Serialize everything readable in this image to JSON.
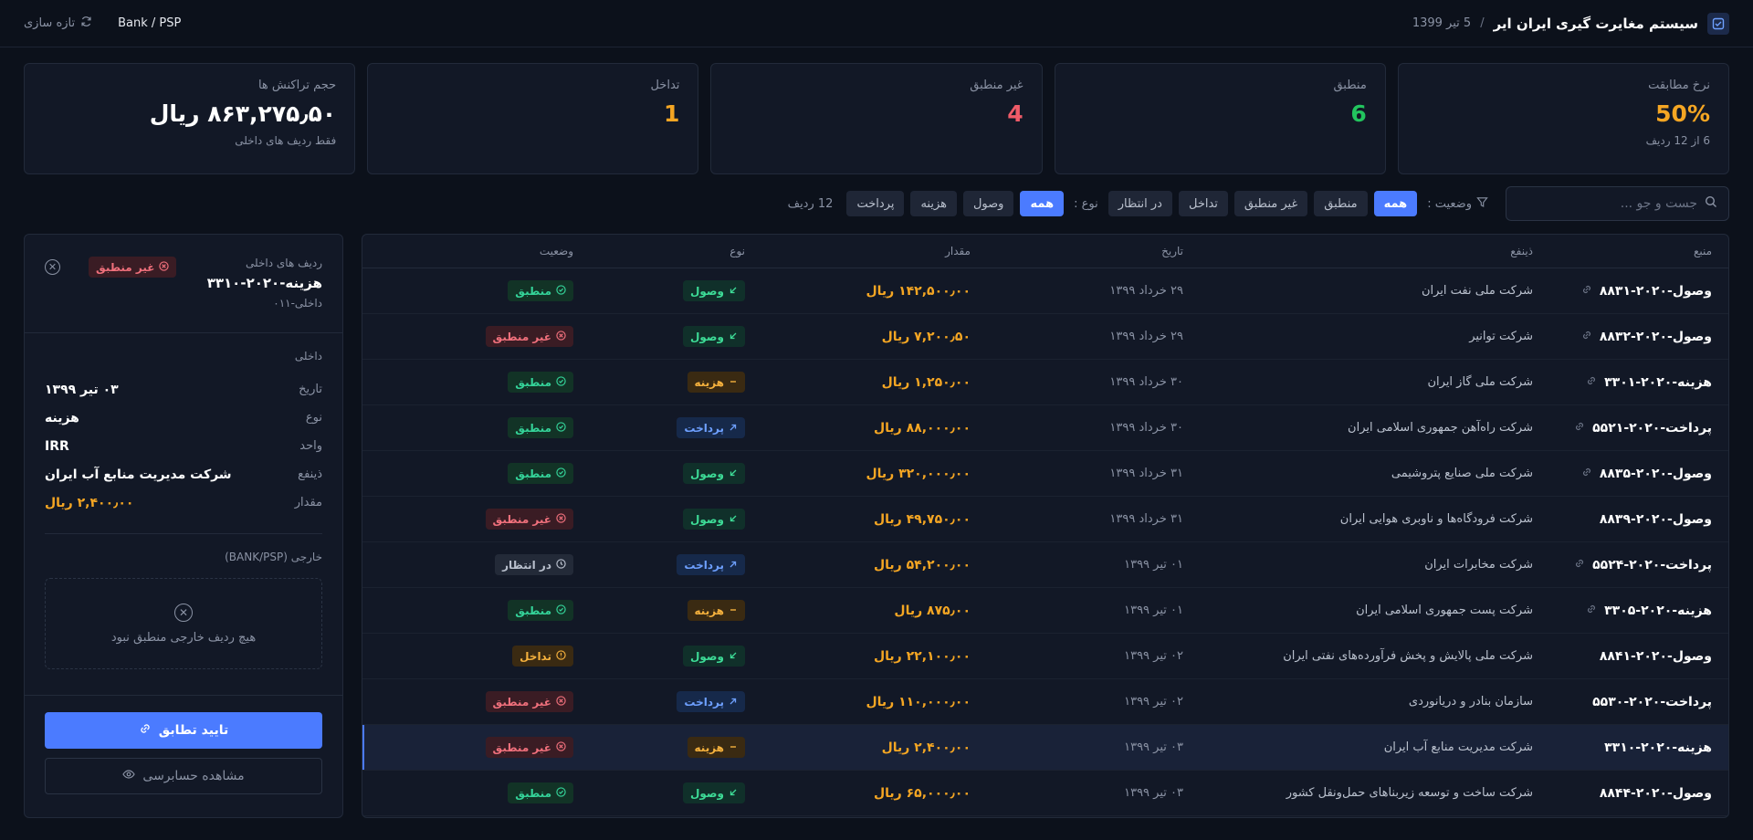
{
  "header": {
    "title": "سیستم مغایرت گیری ایران ایر",
    "separator": "/",
    "date": "5 تیر 1399",
    "mode": "Bank / PSP",
    "refresh_label": "تازه سازی"
  },
  "stats": [
    {
      "label": "نرخ مطابقت",
      "value": "50%",
      "sub": "6 از 12 ردیف",
      "color": "#f5a623"
    },
    {
      "label": "منطبق",
      "value": "6",
      "sub": "",
      "color": "#22c55e"
    },
    {
      "label": "غیر منطبق",
      "value": "4",
      "sub": "",
      "color": "#ef5b68"
    },
    {
      "label": "تداخل",
      "value": "1",
      "sub": "",
      "color": "#f5a623"
    },
    {
      "label": "حجم تراکنش ها",
      "value": "۸۶۳,۲۷۵٫۵۰ ریال",
      "sub": "فقط ردیف های داخلی",
      "color": "#ffffff"
    }
  ],
  "filters": {
    "search_placeholder": "جست و جو ...",
    "status_label": "وضعیت :",
    "status_options": [
      "همه",
      "منطبق",
      "غیر منطبق",
      "تداخل",
      "در انتظار"
    ],
    "type_label": "نوع :",
    "type_options": [
      "همه",
      "وصول",
      "هزینه",
      "پرداخت"
    ],
    "row_count": "12 ردیف"
  },
  "table": {
    "headers": [
      "منبع",
      "ذینفع",
      "تاریخ",
      "مقدار",
      "نوع",
      "وضعیت"
    ],
    "rows": [
      {
        "ref": "وصول-۲۰۲۰-۸۸۳۱",
        "linked": true,
        "payee": "شرکت ملی نفت ایران",
        "date": "۲۹ خرداد ۱۳۹۹",
        "amount": "۱۴۲,۵۰۰٫۰۰ ریال",
        "type": "وصول",
        "type_kind": "in",
        "status": "منطبق",
        "status_kind": "match"
      },
      {
        "ref": "وصول-۲۰۲۰-۸۸۳۲",
        "linked": true,
        "payee": "شرکت توانیر",
        "date": "۲۹ خرداد ۱۳۹۹",
        "amount": "۷,۲۰۰٫۵۰ ریال",
        "type": "وصول",
        "type_kind": "in",
        "status": "غیر منطبق",
        "status_kind": "mismatch"
      },
      {
        "ref": "هزینه-۲۰۲۰-۳۳۰۱",
        "linked": true,
        "payee": "شرکت ملی گاز ایران",
        "date": "۳۰ خرداد ۱۳۹۹",
        "amount": "۱,۲۵۰٫۰۰ ریال",
        "type": "هزینه",
        "type_kind": "exp",
        "status": "منطبق",
        "status_kind": "match"
      },
      {
        "ref": "پرداخت-۲۰۲۰-۵۵۲۱",
        "linked": true,
        "payee": "شرکت راه‌آهن جمهوری اسلامی ایران",
        "date": "۳۰ خرداد ۱۳۹۹",
        "amount": "۸۸,۰۰۰٫۰۰ ریال",
        "type": "پرداخت",
        "type_kind": "pay",
        "status": "منطبق",
        "status_kind": "match"
      },
      {
        "ref": "وصول-۲۰۲۰-۸۸۳۵",
        "linked": true,
        "payee": "شرکت ملی صنایع پتروشیمی",
        "date": "۳۱ خرداد ۱۳۹۹",
        "amount": "۳۲۰,۰۰۰٫۰۰ ریال",
        "type": "وصول",
        "type_kind": "in",
        "status": "منطبق",
        "status_kind": "match"
      },
      {
        "ref": "وصول-۲۰۲۰-۸۸۳۹",
        "linked": false,
        "payee": "شرکت فرودگاه‌ها و ناوبری هوایی ایران",
        "date": "۳۱ خرداد ۱۳۹۹",
        "amount": "۴۹,۷۵۰٫۰۰ ریال",
        "type": "وصول",
        "type_kind": "in",
        "status": "غیر منطبق",
        "status_kind": "mismatch"
      },
      {
        "ref": "پرداخت-۲۰۲۰-۵۵۲۴",
        "linked": true,
        "payee": "شرکت مخابرات ایران",
        "date": "۰۱ تیر ۱۳۹۹",
        "amount": "۵۴,۲۰۰٫۰۰ ریال",
        "type": "پرداخت",
        "type_kind": "pay",
        "status": "در انتظار",
        "status_kind": "pending"
      },
      {
        "ref": "هزینه-۲۰۲۰-۳۳۰۵",
        "linked": true,
        "payee": "شرکت پست جمهوری اسلامی ایران",
        "date": "۰۱ تیر ۱۳۹۹",
        "amount": "۸۷۵٫۰۰ ریال",
        "type": "هزینه",
        "type_kind": "exp",
        "status": "منطبق",
        "status_kind": "match"
      },
      {
        "ref": "وصول-۲۰۲۰-۸۸۴۱",
        "linked": false,
        "payee": "شرکت ملی پالایش و پخش فرآورده‌های نفتی ایران",
        "date": "۰۲ تیر ۱۳۹۹",
        "amount": "۲۲,۱۰۰٫۰۰ ریال",
        "type": "وصول",
        "type_kind": "in",
        "status": "تداخل",
        "status_kind": "conflict"
      },
      {
        "ref": "پرداخت-۲۰۲۰-۵۵۳۰",
        "linked": false,
        "payee": "سازمان بنادر و دریانوردی",
        "date": "۰۲ تیر ۱۳۹۹",
        "amount": "۱۱۰,۰۰۰٫۰۰ ریال",
        "type": "پرداخت",
        "type_kind": "pay",
        "status": "غیر منطبق",
        "status_kind": "mismatch"
      },
      {
        "ref": "هزینه-۲۰۲۰-۳۳۱۰",
        "linked": false,
        "payee": "شرکت مدیریت منابع آب ایران",
        "date": "۰۳ تیر ۱۳۹۹",
        "amount": "۲,۴۰۰٫۰۰ ریال",
        "type": "هزینه",
        "type_kind": "exp",
        "status": "غیر منطبق",
        "status_kind": "mismatch",
        "selected": true
      },
      {
        "ref": "وصول-۲۰۲۰-۸۸۴۴",
        "linked": false,
        "payee": "شرکت ساخت و توسعه زیربناهای حمل‌ونقل کشور",
        "date": "۰۳ تیر ۱۳۹۹",
        "amount": "۶۵,۰۰۰٫۰۰ ریال",
        "type": "وصول",
        "type_kind": "in",
        "status": "منطبق",
        "status_kind": "match"
      }
    ]
  },
  "side": {
    "label": "ردیف های داخلی",
    "ref": "هزینه-۲۰۲۰-۳۳۱۰",
    "sub": "داخلی-۰۱۱",
    "status": "غیر منطبق",
    "internal_title": "داخلی",
    "fields": [
      {
        "k": "تاریخ",
        "v": "۰۳ تیر ۱۳۹۹"
      },
      {
        "k": "نوع",
        "v": "هزینه"
      },
      {
        "k": "واحد",
        "v": "IRR"
      },
      {
        "k": "ذینفع",
        "v": "شرکت مدیریت منابع آب ایران"
      },
      {
        "k": "مقدار",
        "v": "۲,۴۰۰٫۰۰ ریال"
      }
    ],
    "external_title": "خارجی (BANK/PSP)",
    "empty_text": "هیچ ردیف خارجی منطبق نبود",
    "confirm_label": "تایید تطابق",
    "audit_label": "مشاهده حسابرسی"
  }
}
